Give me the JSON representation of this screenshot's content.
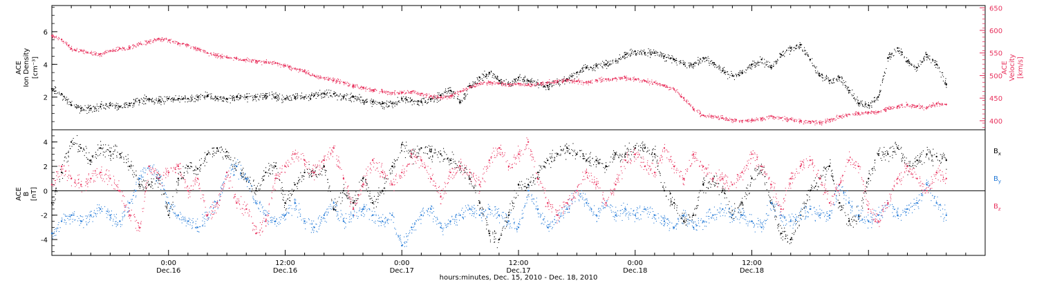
{
  "chart_data": [
    {
      "type": "scatter",
      "panel": "top",
      "ylabel_line1": "ACE",
      "ylabel_line2": "Ion Density",
      "yunit": "[cm⁻³]",
      "y2label_line1": "ACE",
      "y2label_line2": "Velocity",
      "y2unit": "[km/s]",
      "xlim": [
        0,
        96
      ],
      "ylim": [
        0,
        7.6
      ],
      "y2lim": [
        380,
        655
      ],
      "yticks": [
        2,
        4,
        6
      ],
      "y2ticks": [
        400,
        450,
        500,
        550,
        600,
        650
      ],
      "series": [
        {
          "axis": "left",
          "color": "#000000",
          "x": [
            0,
            1,
            2,
            3,
            4,
            5,
            6,
            7,
            8,
            9,
            10,
            11,
            12,
            13,
            14,
            15,
            16,
            17,
            18,
            19,
            20,
            21,
            22,
            23,
            24,
            25,
            26,
            27,
            28,
            29,
            30,
            31,
            32,
            33,
            34,
            35,
            36,
            37,
            38,
            39,
            40,
            41,
            42,
            43,
            44,
            45,
            46,
            47,
            48,
            49,
            50,
            51,
            52,
            53,
            54,
            55,
            56,
            57,
            58,
            59,
            60,
            61,
            62,
            63,
            64,
            65,
            66,
            67,
            68,
            69,
            70,
            71,
            72,
            73,
            74,
            75,
            76,
            77,
            78,
            79,
            80,
            81,
            82,
            83,
            84,
            85,
            86,
            87,
            88,
            89,
            90,
            91,
            92
          ],
          "y": [
            2.5,
            2.2,
            1.5,
            1.3,
            1.3,
            1.4,
            1.5,
            1.4,
            1.6,
            1.8,
            1.9,
            1.8,
            1.9,
            1.9,
            1.9,
            2.0,
            2.1,
            1.9,
            1.9,
            2.0,
            2.0,
            2.0,
            2.1,
            2.0,
            1.9,
            2.0,
            2.0,
            2.1,
            2.2,
            2.2,
            2.0,
            2.0,
            1.8,
            1.7,
            1.6,
            1.6,
            1.9,
            1.8,
            1.7,
            1.9,
            2.1,
            2.4,
            1.7,
            2.7,
            3.2,
            3.5,
            3.0,
            2.8,
            3.2,
            3.0,
            2.8,
            2.7,
            2.9,
            3.1,
            3.5,
            3.8,
            3.9,
            4.0,
            4.2,
            4.6,
            4.8,
            4.7,
            4.7,
            4.5,
            4.3,
            4.0,
            4.0,
            4.4,
            4.1,
            3.6,
            3.3,
            3.5,
            4.0,
            4.3,
            3.8,
            4.6,
            5.0,
            5.2,
            4.3,
            3.3,
            3.0,
            3.2,
            2.4,
            1.6,
            1.5,
            2.0,
            4.4,
            5.0,
            4.2,
            3.8,
            4.6,
            4.0,
            2.8
          ]
        },
        {
          "axis": "right",
          "color": "#e8305c",
          "x": [
            0,
            1,
            2,
            3,
            4,
            5,
            6,
            7,
            8,
            9,
            10,
            11,
            12,
            13,
            14,
            15,
            16,
            17,
            18,
            19,
            20,
            21,
            22,
            23,
            24,
            25,
            26,
            27,
            28,
            29,
            30,
            31,
            32,
            33,
            34,
            35,
            36,
            37,
            38,
            39,
            40,
            41,
            42,
            43,
            44,
            45,
            46,
            47,
            48,
            49,
            50,
            51,
            52,
            53,
            54,
            55,
            56,
            57,
            58,
            59,
            60,
            61,
            62,
            63,
            64,
            65,
            66,
            67,
            68,
            69,
            70,
            71,
            72,
            73,
            74,
            75,
            76,
            77,
            78,
            79,
            80,
            81,
            82,
            83,
            84,
            85,
            86,
            87,
            88,
            89,
            90,
            91,
            92
          ],
          "y": [
            588,
            580,
            560,
            555,
            550,
            548,
            555,
            560,
            562,
            570,
            575,
            582,
            578,
            572,
            568,
            560,
            550,
            545,
            540,
            538,
            535,
            532,
            530,
            528,
            522,
            515,
            510,
            500,
            495,
            490,
            485,
            478,
            473,
            468,
            465,
            462,
            462,
            464,
            460,
            455,
            452,
            455,
            465,
            475,
            482,
            485,
            483,
            480,
            482,
            480,
            482,
            485,
            488,
            490,
            488,
            486,
            490,
            492,
            494,
            495,
            492,
            488,
            485,
            478,
            470,
            450,
            425,
            412,
            410,
            406,
            402,
            400,
            402,
            405,
            410,
            406,
            404,
            400,
            398,
            396,
            402,
            410,
            414,
            416,
            418,
            420,
            428,
            432,
            436,
            432,
            430,
            438,
            436
          ]
        }
      ]
    },
    {
      "type": "scatter",
      "panel": "bottom",
      "ylabel_line1": "ACE",
      "ylabel_line2": "B",
      "yunit": "[nT]",
      "xlim": [
        0,
        96
      ],
      "ylim": [
        -5.3,
        5.0
      ],
      "yticks": [
        -4,
        -2,
        0,
        2,
        4
      ],
      "xticks": [
        "0:00",
        "12:00",
        "0:00",
        "12:00",
        "0:00",
        "12:00"
      ],
      "xtick_positions": [
        12,
        24,
        36,
        48,
        60,
        72
      ],
      "xtick_dates": [
        "Dec.16",
        "Dec.16",
        "Dec.17",
        "Dec.17",
        "Dec.18",
        "Dec.18"
      ],
      "xlabel": "hours:minutes, Dec. 15, 2010 - Dec. 18, 2010",
      "series": [
        {
          "name_base": "B",
          "name_sub": "x",
          "color": "#000000",
          "x": [
            0,
            1,
            2,
            3,
            4,
            5,
            6,
            7,
            8,
            9,
            10,
            11,
            12,
            13,
            14,
            15,
            16,
            17,
            18,
            19,
            20,
            21,
            22,
            23,
            24,
            25,
            26,
            27,
            28,
            29,
            30,
            31,
            32,
            33,
            34,
            35,
            36,
            37,
            38,
            39,
            40,
            41,
            42,
            43,
            44,
            45,
            46,
            47,
            48,
            49,
            50,
            51,
            52,
            53,
            54,
            55,
            56,
            57,
            58,
            59,
            60,
            61,
            62,
            63,
            64,
            65,
            66,
            67,
            68,
            69,
            70,
            71,
            72,
            73,
            74,
            75,
            76,
            77,
            78,
            79,
            80,
            81,
            82,
            83,
            84,
            85,
            86,
            87,
            88,
            89,
            90,
            91,
            92
          ],
          "y": [
            -1.0,
            1.5,
            4.0,
            3.5,
            2.5,
            3.5,
            3.2,
            3.0,
            2.0,
            0.5,
            0.5,
            1.0,
            -2.0,
            1.0,
            2.0,
            1.8,
            3.0,
            3.5,
            3.2,
            2.0,
            1.0,
            0.0,
            1.5,
            2.0,
            -1.0,
            0.5,
            1.5,
            1.5,
            2.0,
            -1.5,
            0.0,
            -1.0,
            1.0,
            -1.0,
            0.0,
            2.0,
            3.8,
            3.0,
            3.5,
            3.2,
            3.0,
            2.5,
            2.0,
            1.0,
            -1.0,
            -3.5,
            -4.0,
            -2.0,
            0.5,
            0.5,
            1.5,
            2.5,
            3.0,
            3.5,
            3.0,
            2.5,
            2.5,
            2.0,
            3.0,
            3.0,
            3.5,
            3.5,
            3.0,
            0.0,
            -1.0,
            -2.5,
            -2.0,
            0.5,
            1.0,
            0.0,
            -2.0,
            -1.0,
            1.0,
            2.0,
            -1.0,
            -3.5,
            -4.0,
            -2.0,
            0.0,
            1.0,
            2.0,
            -1.0,
            -2.5,
            -2.0,
            1.0,
            3.0,
            3.0,
            3.5,
            2.0,
            2.5,
            3.0,
            2.8,
            2.5
          ]
        },
        {
          "name_base": "B",
          "name_sub": "y",
          "color": "#1f77d6",
          "x": [
            0,
            1,
            2,
            3,
            4,
            5,
            6,
            7,
            8,
            9,
            10,
            11,
            12,
            13,
            14,
            15,
            16,
            17,
            18,
            19,
            20,
            21,
            22,
            23,
            24,
            25,
            26,
            27,
            28,
            29,
            30,
            31,
            32,
            33,
            34,
            35,
            36,
            37,
            38,
            39,
            40,
            41,
            42,
            43,
            44,
            45,
            46,
            47,
            48,
            49,
            50,
            51,
            52,
            53,
            54,
            55,
            56,
            57,
            58,
            59,
            60,
            61,
            62,
            63,
            64,
            65,
            66,
            67,
            68,
            69,
            70,
            71,
            72,
            73,
            74,
            75,
            76,
            77,
            78,
            79,
            80,
            81,
            82,
            83,
            84,
            85,
            86,
            87,
            88,
            89,
            90,
            91,
            92
          ],
          "y": [
            -3.5,
            -2.5,
            -2.0,
            -2.5,
            -2.0,
            -1.5,
            -2.0,
            -2.5,
            -1.0,
            1.0,
            2.0,
            1.0,
            -1.0,
            -2.0,
            -2.5,
            -3.0,
            -2.0,
            -1.0,
            1.5,
            2.0,
            1.0,
            -1.0,
            -2.0,
            -2.5,
            -2.0,
            -1.0,
            -2.5,
            -3.0,
            -2.0,
            -1.0,
            -2.5,
            -2.0,
            -1.5,
            -2.0,
            -2.5,
            -2.0,
            -4.5,
            -3.0,
            -2.0,
            -1.5,
            -3.0,
            -2.5,
            -2.0,
            -1.5,
            -2.0,
            -1.5,
            -2.0,
            -2.5,
            -3.0,
            0.0,
            -1.5,
            -3.0,
            -2.0,
            -1.5,
            0.0,
            -1.0,
            -2.0,
            -1.0,
            -2.0,
            -1.5,
            -2.0,
            -1.5,
            -2.0,
            -2.5,
            -3.0,
            -2.0,
            -3.0,
            -2.5,
            -2.0,
            -1.5,
            -2.0,
            -2.0,
            -2.5,
            -3.0,
            -1.0,
            -2.0,
            -2.5,
            -2.0,
            -1.5,
            -2.0,
            -2.0,
            0.5,
            -1.0,
            -2.0,
            -2.5,
            -2.0,
            -1.0,
            -2.0,
            -1.5,
            -1.0,
            0.5,
            -1.0,
            -2.0
          ]
        },
        {
          "name_base": "B",
          "name_sub": "z",
          "color": "#e8305c",
          "x": [
            0,
            1,
            2,
            3,
            4,
            5,
            6,
            7,
            8,
            9,
            10,
            11,
            12,
            13,
            14,
            15,
            16,
            17,
            18,
            19,
            20,
            21,
            22,
            23,
            24,
            25,
            26,
            27,
            28,
            29,
            30,
            31,
            32,
            33,
            34,
            35,
            36,
            37,
            38,
            39,
            40,
            41,
            42,
            43,
            44,
            45,
            46,
            47,
            48,
            49,
            50,
            51,
            52,
            53,
            54,
            55,
            56,
            57,
            58,
            59,
            60,
            61,
            62,
            63,
            64,
            65,
            66,
            67,
            68,
            69,
            70,
            71,
            72,
            73,
            74,
            75,
            76,
            77,
            78,
            79,
            80,
            81,
            82,
            83,
            84,
            85,
            86,
            87,
            88,
            89,
            90,
            91,
            92
          ],
          "y": [
            0.5,
            2.0,
            1.0,
            0.5,
            1.0,
            1.5,
            1.0,
            0.0,
            -2.0,
            -3.0,
            2.0,
            1.0,
            1.5,
            2.0,
            0.0,
            1.0,
            -2.0,
            -1.0,
            1.5,
            -1.0,
            -1.5,
            -3.5,
            -2.5,
            1.0,
            2.0,
            3.0,
            2.5,
            1.5,
            2.5,
            3.5,
            1.0,
            -1.5,
            0.5,
            2.5,
            1.5,
            0.5,
            1.5,
            3.0,
            2.5,
            1.0,
            -0.5,
            1.5,
            2.0,
            1.5,
            0.5,
            2.5,
            3.5,
            2.0,
            3.0,
            4.0,
            1.0,
            -1.0,
            -2.0,
            -1.0,
            0.0,
            1.5,
            0.5,
            -1.0,
            0.5,
            2.5,
            3.0,
            2.0,
            1.5,
            3.5,
            2.0,
            1.0,
            3.0,
            2.0,
            1.0,
            1.0,
            0.5,
            1.5,
            3.0,
            2.0,
            0.5,
            -1.5,
            1.0,
            2.0,
            2.5,
            1.0,
            -1.0,
            0.5,
            2.5,
            2.0,
            -1.5,
            -2.5,
            -1.0,
            1.0,
            2.0,
            1.0,
            0.0,
            1.5,
            1.0
          ]
        }
      ]
    }
  ]
}
